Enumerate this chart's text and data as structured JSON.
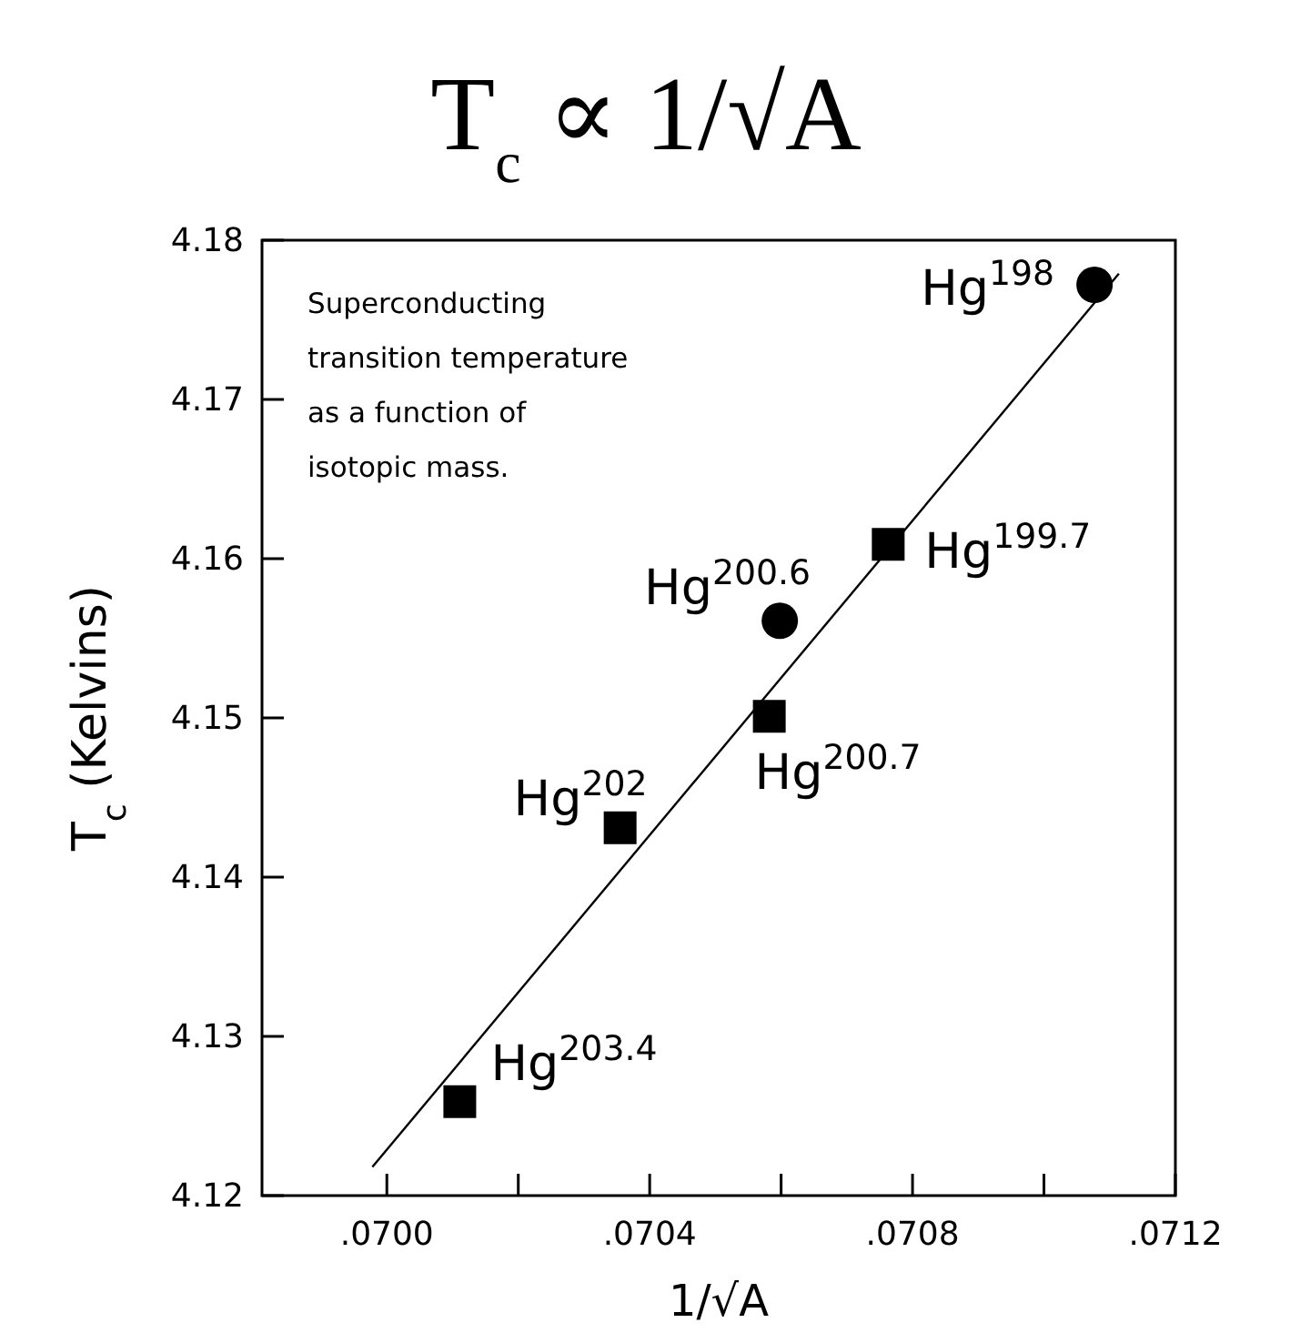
{
  "chart_data": {
    "type": "scatter",
    "title": "T$_{c}$ ∝ 1/√A",
    "xlabel": "1/√A",
    "ylabel": "T$_{c}$ (Kelvins)",
    "xlim": [
      0.06981,
      0.0712
    ],
    "ylim": [
      4.12,
      4.18
    ],
    "xticks": [
      {
        "value": 0.07,
        "label": ".0700"
      },
      {
        "value": 0.0702,
        "label": null
      },
      {
        "value": 0.0704,
        "label": ".0704"
      },
      {
        "value": 0.0706,
        "label": null
      },
      {
        "value": 0.0708,
        "label": ".0708"
      },
      {
        "value": 0.071,
        "label": null
      },
      {
        "value": 0.0712,
        "label": ".0712"
      }
    ],
    "yticks": [
      4.12,
      4.13,
      4.14,
      4.15,
      4.16,
      4.17,
      4.18
    ],
    "grid": false,
    "series": [
      {
        "type": "line",
        "color": "#000000",
        "marker": "none",
        "x": [
          0.069978,
          0.071114
        ],
        "values": [
          4.1218,
          4.1779
        ]
      },
      {
        "type": "scatter",
        "color": "#000000",
        "marker": "circle",
        "x": [
          0.071077,
          0.070598
        ],
        "values": [
          4.1772,
          4.1561
        ]
      },
      {
        "type": "scatter",
        "color": "#000000",
        "marker": "square",
        "x": [
          0.070763,
          0.070582,
          0.070355,
          0.070111
        ],
        "values": [
          4.1609,
          4.1501,
          4.1431,
          4.1259
        ]
      }
    ],
    "annotations": [
      "Superconducting\ntransition temperature\nas a function of\nisotopic mass.",
      {
        "text": "Hg$^{198}$",
        "x": 0.071077,
        "y": 4.1772
      },
      {
        "text": "Hg$^{199.7}$",
        "x": 0.070763,
        "y": 4.1609
      },
      {
        "text": "Hg$^{200.6}$",
        "x": 0.070598,
        "y": 4.1561
      },
      {
        "text": "Hg$^{200.7}$",
        "x": 0.070582,
        "y": 4.1501
      },
      {
        "text": "Hg$^{202}$",
        "x": 0.070355,
        "y": 4.1431
      },
      {
        "text": "Hg$^{203.4}$",
        "x": 0.070111,
        "y": 4.1259
      }
    ]
  }
}
